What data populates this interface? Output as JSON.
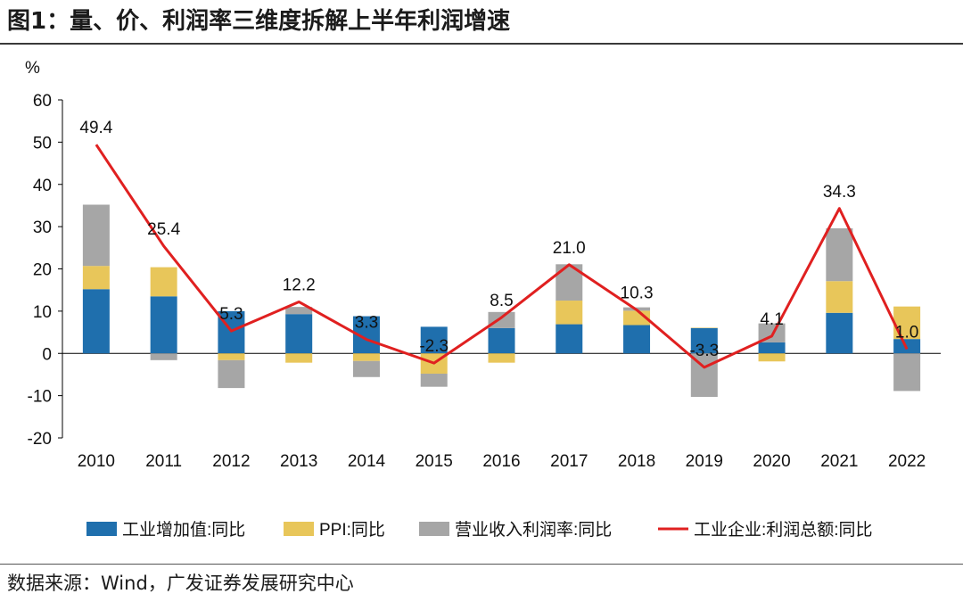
{
  "header": {
    "title": "图1：量、价、利润率三维度拆解上半年利润增速"
  },
  "footer": {
    "source": "数据来源：Wind，广发证券发展研究中心"
  },
  "colors": {
    "industrial_value_added": "#1f6fad",
    "ppi": "#e8c65a",
    "profit_margin": "#a6a6a6",
    "total_profit": "#e02020"
  },
  "chart_data": {
    "type": "bar",
    "stacked": true,
    "ylabel": "%",
    "ylim": [
      -20,
      60
    ],
    "yticks": [
      -20,
      -10,
      0,
      10,
      20,
      30,
      40,
      50,
      60
    ],
    "categories": [
      "2010",
      "2011",
      "2012",
      "2013",
      "2014",
      "2015",
      "2016",
      "2017",
      "2018",
      "2019",
      "2020",
      "2021",
      "2022"
    ],
    "series": [
      {
        "name": "工业增加值:同比",
        "kind": "bar",
        "color_key": "industrial_value_added",
        "values": [
          15.2,
          13.5,
          10.0,
          9.3,
          8.8,
          6.3,
          6.0,
          6.9,
          6.7,
          6.0,
          2.6,
          9.6,
          3.4
        ]
      },
      {
        "name": "PPI:同比",
        "kind": "bar",
        "color_key": "ppi",
        "values": [
          5.5,
          6.9,
          -1.6,
          -2.2,
          -1.8,
          -4.8,
          -2.2,
          5.6,
          3.4,
          0.1,
          -1.9,
          7.5,
          7.7
        ]
      },
      {
        "name": "营业收入利润率:同比",
        "kind": "bar",
        "color_key": "profit_margin",
        "values": [
          14.5,
          -1.6,
          -6.6,
          1.7,
          -3.8,
          -3.1,
          3.8,
          8.6,
          0.8,
          -10.3,
          4.5,
          12.5,
          -8.9
        ]
      },
      {
        "name": "工业企业:利润总额:同比",
        "kind": "line",
        "color_key": "total_profit",
        "values": [
          49.4,
          25.4,
          5.3,
          12.2,
          3.3,
          -2.3,
          8.5,
          21.0,
          10.3,
          -3.3,
          4.1,
          34.3,
          1.0
        ],
        "labels": [
          "49.4",
          "25.4",
          "5.3",
          "12.2",
          "3.3",
          "-2.3",
          "8.5",
          "21.0",
          "10.3",
          "-3.3",
          "4.1",
          "34.3",
          "1.0"
        ]
      }
    ],
    "legend_position": "bottom"
  }
}
